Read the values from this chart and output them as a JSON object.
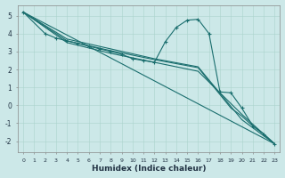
{
  "xlabel": "Humidex (Indice chaleur)",
  "background_color": "#cce8e8",
  "line_color": "#1a6e6e",
  "xlim": [
    -0.5,
    23.5
  ],
  "ylim": [
    -2.6,
    5.6
  ],
  "yticks": [
    -2,
    -1,
    0,
    1,
    2,
    3,
    4,
    5
  ],
  "xticks": [
    0,
    1,
    2,
    3,
    4,
    5,
    6,
    7,
    8,
    9,
    10,
    11,
    12,
    13,
    14,
    15,
    16,
    17,
    18,
    19,
    20,
    21,
    22,
    23
  ],
  "lines": [
    {
      "x": [
        0,
        2,
        3,
        4,
        5,
        6,
        7,
        8,
        9,
        10,
        11,
        12,
        13,
        14,
        15,
        16,
        17,
        18,
        19,
        20,
        21,
        22,
        23
      ],
      "y": [
        5.2,
        4.0,
        3.75,
        3.6,
        3.45,
        3.3,
        3.15,
        3.0,
        2.85,
        2.6,
        2.5,
        2.4,
        3.55,
        4.35,
        4.75,
        4.8,
        4.0,
        0.75,
        0.7,
        -0.15,
        -1.15,
        -1.6,
        -2.15
      ],
      "marker": true
    },
    {
      "x": [
        0,
        23
      ],
      "y": [
        5.2,
        -2.15
      ],
      "marker": false
    },
    {
      "x": [
        0,
        4,
        8,
        12,
        16,
        20,
        23
      ],
      "y": [
        5.2,
        3.5,
        2.9,
        2.4,
        1.9,
        -0.5,
        -2.15
      ],
      "marker": false
    },
    {
      "x": [
        0,
        4,
        8,
        12,
        16,
        19,
        20,
        21,
        22,
        23
      ],
      "y": [
        5.2,
        3.6,
        3.05,
        2.55,
        2.1,
        -0.15,
        -0.6,
        -1.15,
        -1.6,
        -2.15
      ],
      "marker": false
    },
    {
      "x": [
        0,
        4,
        8,
        12,
        16,
        20,
        23
      ],
      "y": [
        5.2,
        3.7,
        3.15,
        2.6,
        2.15,
        -0.8,
        -2.15
      ],
      "marker": false
    }
  ]
}
